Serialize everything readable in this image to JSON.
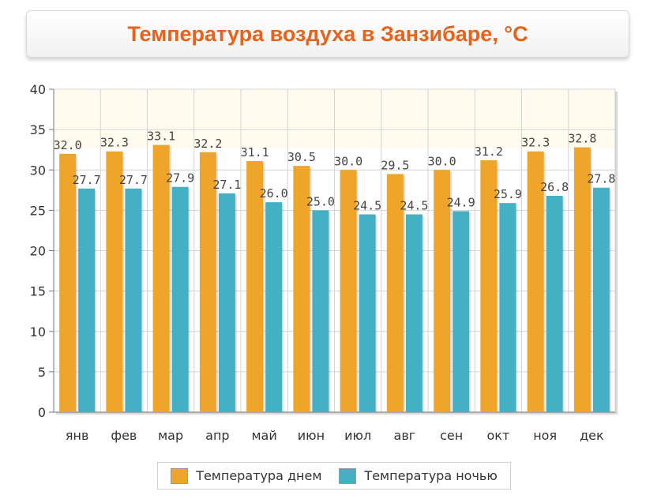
{
  "chart_data": {
    "type": "bar",
    "title": "Температура воздуха в Занзибаре, °C",
    "categories": [
      "янв",
      "фев",
      "мар",
      "апр",
      "май",
      "июн",
      "июл",
      "авг",
      "сен",
      "окт",
      "ноя",
      "дек"
    ],
    "series": [
      {
        "name": "Температура днем",
        "color": "#eea52a",
        "values": [
          32.0,
          32.3,
          33.1,
          32.2,
          31.1,
          30.5,
          30.0,
          29.5,
          30.0,
          31.2,
          32.3,
          32.8
        ],
        "labels": [
          "32.0",
          "32.3",
          "33.1",
          "32.2",
          "31.1",
          "30.5",
          "30.0",
          "29.5",
          "30.0",
          "31.2",
          "32.3",
          "32.8"
        ]
      },
      {
        "name": "Температура ночью",
        "color": "#44b0c4",
        "values": [
          27.7,
          27.7,
          27.9,
          27.1,
          26.0,
          25.0,
          24.5,
          24.5,
          24.9,
          25.9,
          26.8,
          27.8
        ],
        "labels": [
          "27.7",
          "27.7",
          "27.9",
          "27.1",
          "26.0",
          "25.0",
          "24.5",
          "24.5",
          "24.9",
          "25.9",
          "26.8",
          "27.8"
        ]
      }
    ],
    "ylim": [
      0,
      40
    ],
    "yticks": [
      "0",
      "5",
      "10",
      "15",
      "20",
      "25",
      "30",
      "35",
      "40"
    ],
    "grid": true,
    "legend_position": "bottom"
  }
}
